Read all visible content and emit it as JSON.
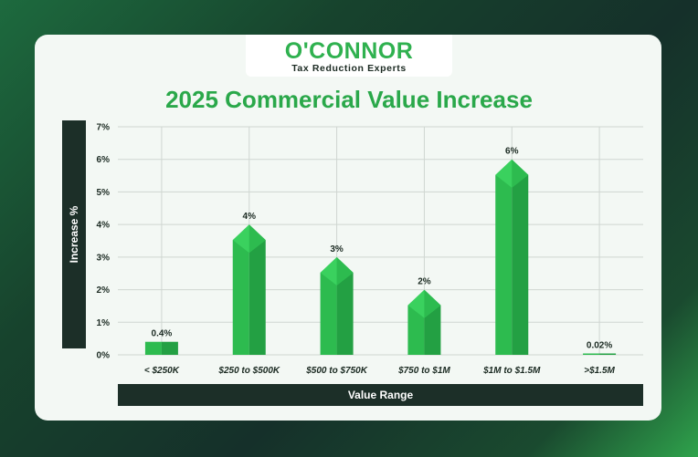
{
  "brand": {
    "name": "O'CONNOR",
    "tagline": "Tax Reduction Experts"
  },
  "colors": {
    "bar_front": "#2dbb4f",
    "bar_side": "#23a043",
    "bar_top": "#3ad15e",
    "title": "#2aa84a"
  },
  "chart_data": {
    "type": "bar",
    "title": "2025 Commercial Value Increase",
    "xlabel": "Value Range",
    "ylabel": "Increase %",
    "categories": [
      "< $250K",
      "$250 to $500K",
      "$500 to $750K",
      "$750 to $1M",
      "$1M to $1.5M",
      ">$1.5M"
    ],
    "values": [
      0.4,
      4,
      3,
      2,
      6,
      0.02
    ],
    "value_labels": [
      "0.4%",
      "4%",
      "3%",
      "2%",
      "6%",
      "0.02%"
    ],
    "yticks": [
      "0%",
      "1%",
      "2%",
      "3%",
      "4%",
      "5%",
      "6%",
      "7%"
    ],
    "ylim": [
      0,
      7
    ],
    "grid": true
  }
}
